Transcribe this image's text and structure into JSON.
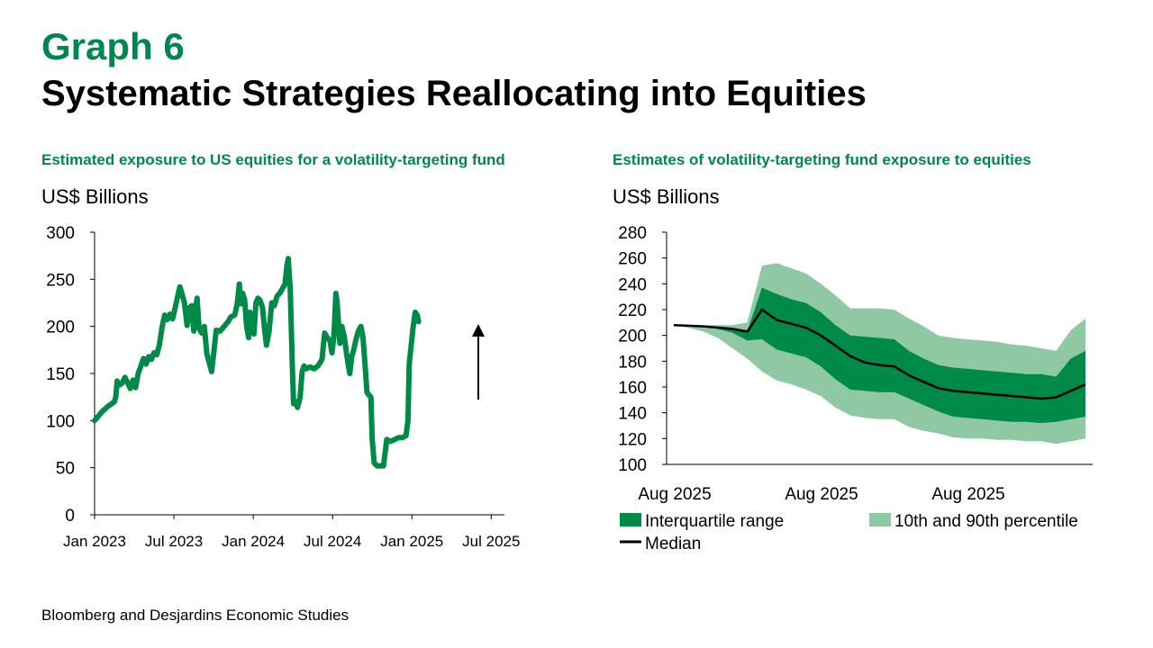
{
  "header": {
    "graph_label": "Graph 6",
    "title": "Systematic Strategies Reallocating into Equities"
  },
  "source": "Bloomberg and Desjardins Economic Studies",
  "colors": {
    "accent": "#00874e",
    "line": "#008a47",
    "iqr": "#008a47",
    "pct_band": "#8fc9a3",
    "median": "#000000"
  },
  "chart_data": [
    {
      "type": "line",
      "title": "Estimated exposure to US equities for a volatility-targeting fund",
      "ylabel": "US$ Billions",
      "xlabel": "",
      "ylim": [
        0,
        300
      ],
      "yticks": [
        0,
        50,
        100,
        150,
        200,
        250,
        300
      ],
      "xlim": [
        0,
        31
      ],
      "xticks": [
        {
          "label": "Jan 2023",
          "x": 0
        },
        {
          "label": "Jul 2023",
          "x": 6
        },
        {
          "label": "Jan 2024",
          "x": 12
        },
        {
          "label": "Jul 2024",
          "x": 18
        },
        {
          "label": "Jan 2025",
          "x": 24
        },
        {
          "label": "Jul 2025",
          "x": 30
        }
      ],
      "grid": false,
      "annotation": "upward-arrow",
      "series": [
        {
          "values": [
            [
              0,
              100
            ],
            [
              0.3,
              105
            ],
            [
              0.6,
              110
            ],
            [
              1.0,
              115
            ],
            [
              1.3,
              118
            ],
            [
              1.5,
              120
            ],
            [
              1.6,
              125
            ],
            [
              1.7,
              142
            ],
            [
              1.9,
              138
            ],
            [
              2.1,
              140
            ],
            [
              2.3,
              146
            ],
            [
              2.5,
              140
            ],
            [
              2.7,
              134
            ],
            [
              2.9,
              143
            ],
            [
              3.1,
              135
            ],
            [
              3.3,
              150
            ],
            [
              3.5,
              158
            ],
            [
              3.7,
              166
            ],
            [
              3.9,
              160
            ],
            [
              4.1,
              168
            ],
            [
              4.3,
              165
            ],
            [
              4.5,
              172
            ],
            [
              4.7,
              170
            ],
            [
              4.9,
              180
            ],
            [
              5.1,
              199
            ],
            [
              5.3,
              212
            ],
            [
              5.5,
              207
            ],
            [
              5.7,
              213
            ],
            [
              5.9,
              208
            ],
            [
              6.1,
              220
            ],
            [
              6.3,
              233
            ],
            [
              6.45,
              242
            ],
            [
              6.6,
              235
            ],
            [
              6.8,
              225
            ],
            [
              7.0,
              201
            ],
            [
              7.2,
              220
            ],
            [
              7.35,
              222
            ],
            [
              7.5,
              195
            ],
            [
              7.6,
              215
            ],
            [
              7.75,
              230
            ],
            [
              7.9,
              198
            ],
            [
              8.1,
              193
            ],
            [
              8.3,
              200
            ],
            [
              8.5,
              170
            ],
            [
              8.7,
              160
            ],
            [
              8.85,
              152
            ],
            [
              9.0,
              170
            ],
            [
              9.2,
              196
            ],
            [
              9.5,
              195
            ],
            [
              9.8,
              200
            ],
            [
              10.1,
              205
            ],
            [
              10.3,
              210
            ],
            [
              10.6,
              212
            ],
            [
              10.8,
              225
            ],
            [
              10.95,
              245
            ],
            [
              11.05,
              224
            ],
            [
              11.2,
              235
            ],
            [
              11.35,
              228
            ],
            [
              11.5,
              200
            ],
            [
              11.65,
              188
            ],
            [
              11.75,
              215
            ],
            [
              11.9,
              210
            ],
            [
              12.05,
              192
            ],
            [
              12.2,
              225
            ],
            [
              12.35,
              230
            ],
            [
              12.5,
              228
            ],
            [
              12.7,
              220
            ],
            [
              12.85,
              198
            ],
            [
              13.0,
              180
            ],
            [
              13.2,
              195
            ],
            [
              13.4,
              225
            ],
            [
              13.6,
              222
            ],
            [
              13.8,
              232
            ],
            [
              14.0,
              235
            ],
            [
              14.2,
              240
            ],
            [
              14.4,
              245
            ],
            [
              14.55,
              265
            ],
            [
              14.65,
              272
            ],
            [
              14.8,
              240
            ],
            [
              14.95,
              162
            ],
            [
              15.05,
              118
            ],
            [
              15.2,
              120
            ],
            [
              15.35,
              114
            ],
            [
              15.55,
              125
            ],
            [
              15.7,
              152
            ],
            [
              15.85,
              158
            ],
            [
              16.0,
              155
            ],
            [
              16.3,
              157
            ],
            [
              16.6,
              155
            ],
            [
              16.9,
              158
            ],
            [
              17.2,
              165
            ],
            [
              17.4,
              193
            ],
            [
              17.6,
              188
            ],
            [
              17.8,
              185
            ],
            [
              17.95,
              172
            ],
            [
              18.1,
              190
            ],
            [
              18.25,
              235
            ],
            [
              18.35,
              225
            ],
            [
              18.55,
              182
            ],
            [
              18.7,
              200
            ],
            [
              18.9,
              188
            ],
            [
              19.05,
              172
            ],
            [
              19.2,
              158
            ],
            [
              19.3,
              150
            ],
            [
              19.45,
              168
            ],
            [
              19.6,
              175
            ],
            [
              19.75,
              185
            ],
            [
              19.95,
              195
            ],
            [
              20.15,
              200
            ],
            [
              20.3,
              188
            ],
            [
              20.45,
              160
            ],
            [
              20.6,
              130
            ],
            [
              20.75,
              127
            ],
            [
              20.9,
              125
            ],
            [
              21.0,
              80
            ],
            [
              21.15,
              55
            ],
            [
              21.35,
              52
            ],
            [
              21.6,
              52
            ],
            [
              21.85,
              52
            ],
            [
              22.1,
              80
            ],
            [
              22.4,
              78
            ],
            [
              22.7,
              80
            ],
            [
              23.0,
              82
            ],
            [
              23.3,
              82
            ],
            [
              23.55,
              84
            ],
            [
              23.7,
              100
            ],
            [
              23.8,
              160
            ],
            [
              23.95,
              180
            ],
            [
              24.1,
              200
            ],
            [
              24.25,
              215
            ],
            [
              24.4,
              212
            ],
            [
              24.5,
              205
            ]
          ],
          "data_note": "x in months since Jan 2023, y in US$ billions"
        }
      ]
    },
    {
      "type": "area",
      "title": "Estimates of volatility-targeting fund exposure to equities",
      "ylabel": "US$ Billions",
      "xlabel": "",
      "ylim": [
        100,
        280
      ],
      "yticks": [
        100,
        120,
        140,
        160,
        180,
        200,
        220,
        240,
        260,
        280
      ],
      "xtick_labels": [
        "Aug 2025",
        "Aug 2025",
        "Aug 2025"
      ],
      "grid": false,
      "legend": "bottom",
      "legend_entries": [
        "Interquartile range",
        "10th and 90th percentile",
        "Median"
      ],
      "x": [
        0,
        1,
        2,
        3,
        4,
        5,
        6,
        7,
        8,
        9,
        10,
        11,
        12,
        13,
        14,
        15,
        16,
        17,
        18,
        19,
        20,
        21,
        22,
        23,
        24,
        25,
        26,
        27,
        28
      ],
      "series": [
        {
          "name": "Median",
          "values": [
            208,
            207.5,
            207,
            206,
            205,
            203,
            220,
            212,
            209,
            206,
            200,
            192,
            184,
            179,
            177,
            176,
            169,
            164,
            159,
            157,
            156,
            155,
            154,
            153,
            152,
            151,
            152,
            157,
            162
          ]
        },
        {
          "name": "Interquartile range upper",
          "values": [
            208,
            207.5,
            207.5,
            207,
            206,
            203,
            237,
            232,
            228,
            225,
            218,
            208,
            200,
            199,
            198,
            197,
            188,
            182,
            177,
            175,
            174,
            173,
            172,
            171,
            170,
            170,
            168,
            182,
            188
          ]
        },
        {
          "name": "Interquartile range lower",
          "values": [
            208,
            207.5,
            207,
            205,
            202,
            196,
            197,
            189,
            186,
            183,
            176,
            166,
            158,
            157,
            156,
            156,
            151,
            146,
            141,
            137,
            136,
            135,
            134,
            133,
            133,
            132,
            133,
            135,
            137
          ]
        },
        {
          "name": "90th percentile",
          "values": [
            208,
            208,
            208,
            208,
            208,
            210,
            254,
            256,
            252,
            248,
            240,
            231,
            221,
            221,
            221,
            220,
            213,
            207,
            200,
            198,
            197,
            196,
            195,
            193,
            192,
            190,
            188,
            204,
            213
          ]
        },
        {
          "name": "10th percentile",
          "values": [
            208,
            206,
            203,
            198,
            190,
            182,
            172,
            165,
            162,
            158,
            153,
            144,
            138,
            136,
            135,
            135,
            129,
            126,
            124,
            121,
            120,
            120,
            119,
            119,
            118,
            118,
            116,
            118,
            120
          ]
        }
      ]
    }
  ]
}
